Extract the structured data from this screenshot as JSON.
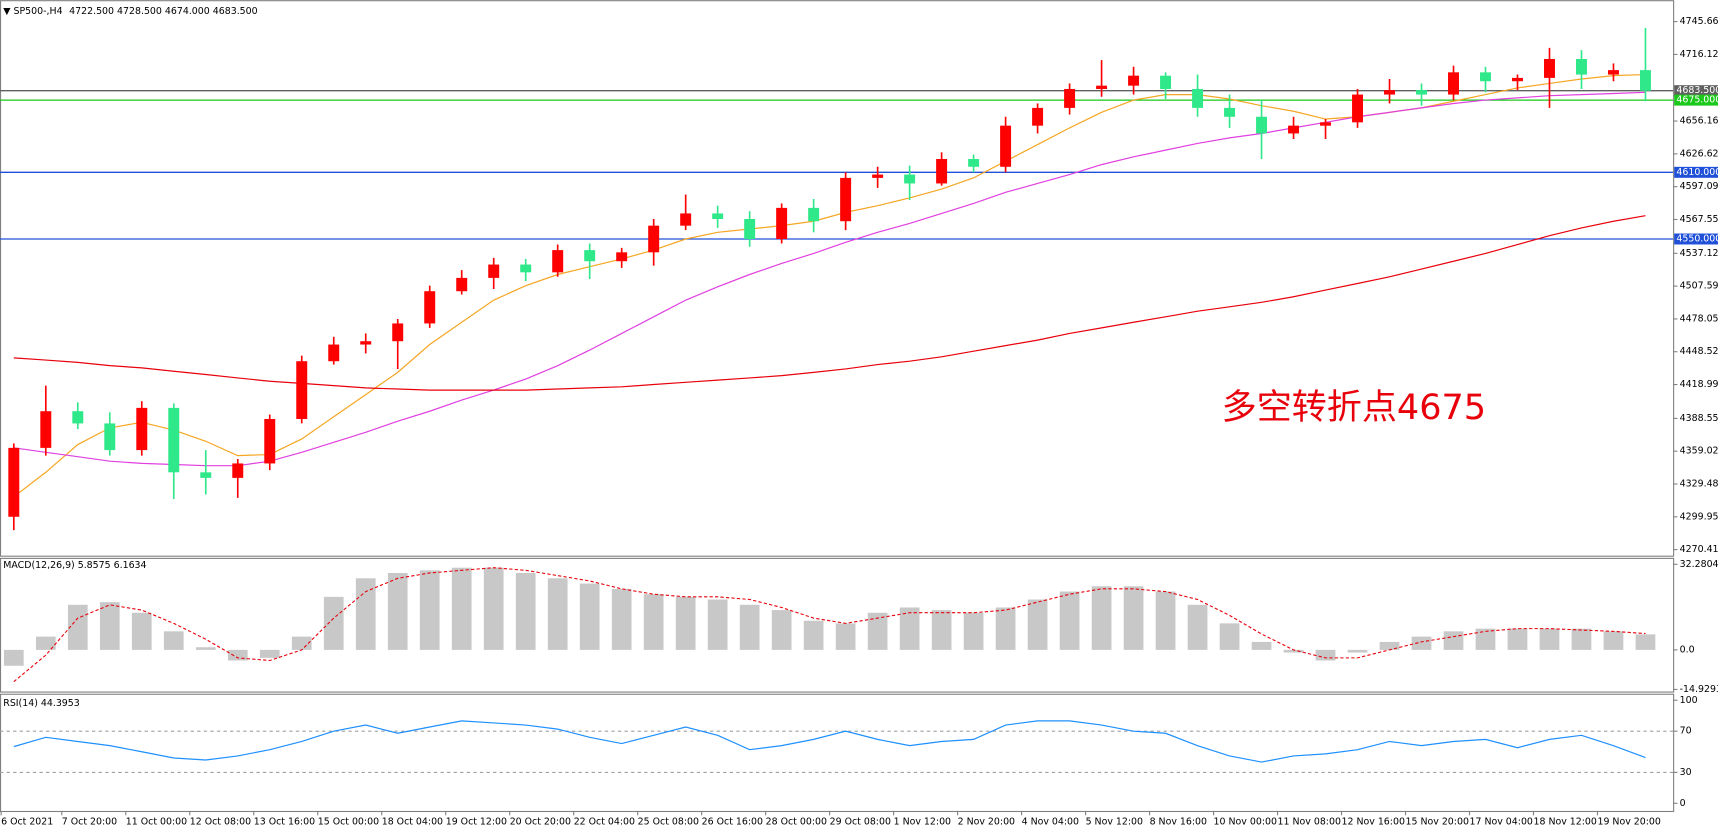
{
  "chart_data": [
    {
      "type": "candlestick",
      "title": "SP500-,H4",
      "subtitle": "4722.500 4728.500 4674.000 4683.500",
      "annotation": "多空转折点4675",
      "up_color": "#ff0000",
      "down_color": "#2ee88a",
      "categories": [
        "6 Oct 2021",
        null,
        "7 Oct 20:00",
        null,
        "11 Oct 00:00",
        null,
        "12 Oct 08:00",
        null,
        "13 Oct 16:00",
        null,
        "15 Oct 00:00",
        null,
        "18 Oct 04:00",
        null,
        "19 Oct 12:00",
        null,
        "20 Oct 20:00",
        null,
        "22 Oct 04:00",
        null,
        "25 Oct 08:00",
        null,
        "26 Oct 16:00",
        null,
        "28 Oct 00:00",
        null,
        "29 Oct 08:00",
        null,
        "1 Nov 12:00",
        null,
        "2 Nov 20:00",
        null,
        "4 Nov 04:00",
        null,
        "5 Nov 12:00",
        null,
        "8 Nov 16:00",
        null,
        "10 Nov 00:00",
        null,
        "11 Nov 08:00",
        null,
        "12 Nov 16:00",
        null,
        "15 Nov 20:00",
        null,
        "17 Nov 04:00",
        null,
        "18 Nov 12:00",
        null,
        "19 Nov 20:00",
        null
      ],
      "open": [
        4300,
        4362,
        4395,
        4384,
        4360,
        4398,
        4340,
        4335,
        4348,
        4388,
        4440,
        4455,
        4458,
        4474,
        4503,
        4515,
        4527,
        4520,
        4540,
        4530,
        4538,
        4562,
        4573,
        4568,
        4550,
        4578,
        4566,
        4605,
        4608,
        4600,
        4622,
        4615,
        4652,
        4668,
        4685,
        4688,
        4697,
        4685,
        4668,
        4660,
        4645,
        4652,
        4655,
        4680,
        4684,
        4680,
        4700,
        4692,
        4695,
        4712,
        4698,
        4702
      ],
      "high": [
        4366,
        4418,
        4403,
        4394,
        4404,
        4402,
        4360,
        4352,
        4392,
        4445,
        4462,
        4465,
        4478,
        4508,
        4522,
        4533,
        4532,
        4545,
        4546,
        4542,
        4568,
        4590,
        4580,
        4575,
        4582,
        4586,
        4610,
        4615,
        4616,
        4628,
        4626,
        4660,
        4672,
        4690,
        4711,
        4705,
        4700,
        4698,
        4680,
        4675,
        4660,
        4658,
        4685,
        4694,
        4690,
        4706,
        4705,
        4698,
        4722,
        4720,
        4708,
        4740
      ],
      "low": [
        4288,
        4355,
        4379,
        4355,
        4355,
        4316,
        4320,
        4317,
        4342,
        4384,
        4437,
        4447,
        4433,
        4470,
        4500,
        4505,
        4512,
        4516,
        4514,
        4524,
        4526,
        4558,
        4560,
        4543,
        4546,
        4556,
        4558,
        4596,
        4585,
        4598,
        4610,
        4610,
        4645,
        4662,
        4678,
        4680,
        4676,
        4660,
        4650,
        4622,
        4640,
        4640,
        4650,
        4672,
        4670,
        4675,
        4682,
        4684,
        4668,
        4685,
        4692,
        4674
      ],
      "close": [
        4362,
        4395,
        4384,
        4360,
        4398,
        4340,
        4335,
        4348,
        4388,
        4440,
        4455,
        4458,
        4474,
        4503,
        4515,
        4527,
        4520,
        4540,
        4530,
        4538,
        4562,
        4573,
        4568,
        4550,
        4578,
        4566,
        4605,
        4608,
        4600,
        4622,
        4615,
        4652,
        4668,
        4685,
        4688,
        4697,
        4685,
        4668,
        4660,
        4645,
        4652,
        4655,
        4680,
        4684,
        4680,
        4700,
        4692,
        4695,
        4712,
        4698,
        4702,
        4683.5
      ],
      "series": [
        {
          "color": "#f5a623",
          "values": [
            4318,
            4340,
            4365,
            4380,
            4385,
            4378,
            4368,
            4355,
            4356,
            4370,
            4390,
            4410,
            4430,
            4455,
            4475,
            4495,
            4508,
            4518,
            4525,
            4532,
            4540,
            4550,
            4556,
            4559,
            4562,
            4566,
            4574,
            4580,
            4587,
            4595,
            4605,
            4620,
            4635,
            4650,
            4664,
            4675,
            4680,
            4680,
            4676,
            4670,
            4665,
            4658,
            4660,
            4664,
            4668,
            4674,
            4680,
            4686,
            4690,
            4694,
            4697,
            4698
          ]
        },
        {
          "color": "#e040e0",
          "values": [
            4362,
            4358,
            4354,
            4350,
            4348,
            4347,
            4346,
            4346,
            4350,
            4358,
            4367,
            4376,
            4386,
            4395,
            4405,
            4414,
            4424,
            4436,
            4450,
            4465,
            4480,
            4495,
            4507,
            4518,
            4528,
            4537,
            4547,
            4556,
            4564,
            4573,
            4582,
            4592,
            4600,
            4608,
            4617,
            4624,
            4630,
            4636,
            4641,
            4645,
            4650,
            4655,
            4660,
            4664,
            4668,
            4672,
            4675,
            4677,
            4679,
            4680,
            4681,
            4682
          ]
        },
        {
          "color": "#e8000b",
          "values": [
            4443,
            4441,
            4439,
            4436,
            4434,
            4431,
            4428,
            4425,
            4422,
            4420,
            4418,
            4416,
            4415,
            4414,
            4414,
            4414,
            4414,
            4415,
            4416,
            4417,
            4419,
            4421,
            4423,
            4425,
            4427,
            4430,
            4433,
            4437,
            4440,
            4444,
            4449,
            4454,
            4459,
            4465,
            4470,
            4475,
            4480,
            4485,
            4489,
            4493,
            4498,
            4504,
            4510,
            4516,
            4523,
            4530,
            4537,
            4545,
            4553,
            4560,
            4566,
            4571
          ]
        }
      ],
      "levels": [
        {
          "value": 4683.5,
          "label": "4683.500",
          "color": "#606060"
        },
        {
          "value": 4675,
          "label": "4675.000",
          "color": "#19c819"
        },
        {
          "value": 4610,
          "label": "4610.000",
          "color": "#2050d8"
        },
        {
          "value": 4550,
          "label": "4550.000",
          "color": "#2050d8"
        }
      ],
      "ylim": [
        4265,
        4763
      ],
      "yticks": [
        {
          "value": 4745.66,
          "label": "4745.660"
        },
        {
          "value": 4716.125,
          "label": "4716.125"
        },
        {
          "value": 4656.16,
          "label": "4656.160"
        },
        {
          "value": 4626.625,
          "label": "4626.625"
        },
        {
          "value": 4597.09,
          "label": "4597.090"
        },
        {
          "value": 4567.555,
          "label": "4567.555"
        },
        {
          "value": 4537.125,
          "label": "4537.125"
        },
        {
          "value": 4507.59,
          "label": "4507.590"
        },
        {
          "value": 4478.055,
          "label": "4478.055"
        },
        {
          "value": 4448.525,
          "label": "4448.525"
        },
        {
          "value": 4418.99,
          "label": "4418.990"
        },
        {
          "value": 4388.555,
          "label": "4388.555"
        },
        {
          "value": 4359.02,
          "label": "4359.020"
        },
        {
          "value": 4329.485,
          "label": "4329.485"
        },
        {
          "value": 4299.95,
          "label": "4299.950"
        },
        {
          "value": 4270.415,
          "label": "4270.415"
        }
      ]
    },
    {
      "type": "macd",
      "title": "MACD(12,26,9) 5.8575 6.1634",
      "series": [
        {
          "style": "histogram",
          "color": "#c8c8c8",
          "values": [
            -6,
            5,
            17,
            18,
            14,
            7,
            1,
            -4,
            -3,
            5,
            20,
            27,
            29,
            30,
            31,
            31,
            29,
            27,
            25,
            23,
            21,
            20,
            19,
            17,
            15,
            11,
            10,
            14,
            16,
            15,
            14,
            16,
            19,
            22,
            24,
            24,
            22,
            17,
            10,
            3,
            -1,
            -4,
            -1,
            3,
            5,
            7,
            8,
            8,
            8,
            8,
            7,
            5.8575
          ]
        },
        {
          "style": "dotted",
          "color": "#e8000b",
          "values": [
            -12,
            -2,
            12,
            17,
            15,
            10,
            4,
            -3,
            -4,
            0,
            12,
            22,
            27,
            29,
            30,
            31,
            30,
            28,
            26,
            23,
            21,
            20,
            20,
            19,
            16,
            12,
            10,
            12,
            14,
            14,
            14,
            15,
            18,
            21,
            23,
            23,
            22,
            19,
            13,
            6,
            0,
            -3,
            -3,
            0,
            3,
            5,
            7,
            8,
            8,
            7.5,
            7,
            6.1634
          ]
        }
      ],
      "ylim": [
        -15.7,
        34.3
      ],
      "yticks": [
        32.2804,
        {
          "value": 0,
          "label": "0.0"
        },
        -14.9293
      ]
    },
    {
      "type": "line",
      "title": "RSI(14) 44.3953",
      "series": [
        {
          "color": "#1e90ff",
          "values": [
            55,
            64,
            60,
            56,
            50,
            44,
            42,
            46,
            52,
            60,
            70,
            76,
            68,
            74,
            80,
            78,
            76,
            72,
            64,
            58,
            66,
            74,
            66,
            52,
            56,
            62,
            70,
            62,
            56,
            60,
            62,
            76,
            80,
            80,
            76,
            70,
            68,
            56,
            46,
            40,
            46,
            48,
            52,
            60,
            56,
            60,
            62,
            54,
            62,
            66,
            56,
            44.3953
          ]
        }
      ],
      "levels": [
        70,
        30
      ],
      "ylim": [
        -7.4,
        105.3
      ],
      "yticks": [
        100,
        70,
        30,
        0
      ]
    }
  ]
}
